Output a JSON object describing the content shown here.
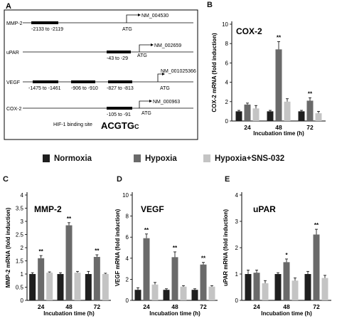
{
  "panel_a": {
    "letter": "A",
    "genes": [
      {
        "name": "MMP-2",
        "accession": "NM_004530",
        "sites": [
          "-2133 to -2119"
        ],
        "atg": "ATG"
      },
      {
        "name": "uPAR",
        "accession": "NM_002659",
        "sites": [
          "-43 to -29"
        ],
        "atg": "ATG"
      },
      {
        "name": "VEGF",
        "accession": "NM_001025366",
        "sites": [
          "-1475 to -1461",
          "-906 to -910",
          "-827 to -813"
        ],
        "atg": "ATG"
      },
      {
        "name": "COX-2",
        "accession": "NM_000963",
        "sites": [
          "-105 to -91"
        ],
        "atg": "ATG"
      }
    ],
    "binding_label": "HIF-1 binding site",
    "binding_seq": "ACGTG",
    "binding_seq_suffix": "C"
  },
  "legend": {
    "normoxia": "Normoxia",
    "hypoxia": "Hypoxia",
    "hypoxia_sns": "Hypoxia+SNS-032"
  },
  "colors": {
    "normoxia": "#1f1f1f",
    "hypoxia": "#6a6a6a",
    "hypoxia_sns": "#c4c4c4",
    "axis": "#000000"
  },
  "chart_data": [
    {
      "panel": "B",
      "type": "bar",
      "title": "COX-2",
      "xlabel": "Incubation time (h)",
      "ylabel": "COX-2 mRNA (fold induction)",
      "categories": [
        "24",
        "48",
        "72"
      ],
      "ylim": [
        0,
        10
      ],
      "yticks": [
        0,
        2,
        4,
        6,
        8,
        10
      ],
      "series": [
        {
          "name": "Normoxia",
          "values": [
            1.0,
            1.0,
            1.0
          ],
          "errors": [
            0.1,
            0.1,
            0.1
          ]
        },
        {
          "name": "Hypoxia",
          "values": [
            1.7,
            7.4,
            2.1
          ],
          "errors": [
            0.15,
            0.8,
            0.3
          ]
        },
        {
          "name": "Hypoxia+SNS-032",
          "values": [
            1.3,
            2.0,
            0.8
          ],
          "errors": [
            0.3,
            0.3,
            0.2
          ]
        }
      ],
      "significance": [
        null,
        "**",
        "**"
      ]
    },
    {
      "panel": "C",
      "type": "bar",
      "title": "MMP-2",
      "xlabel": "Incubation time (h)",
      "ylabel": "MMP-2 mRNA (fold induction)",
      "categories": [
        "24",
        "48",
        "72"
      ],
      "ylim": [
        0,
        4
      ],
      "yticks": [
        0,
        0.5,
        1,
        1.5,
        2,
        2.5,
        3,
        3.5,
        4
      ],
      "series": [
        {
          "name": "Normoxia",
          "values": [
            1.0,
            1.0,
            1.0
          ],
          "errors": [
            0.05,
            0.05,
            0.1
          ]
        },
        {
          "name": "Hypoxia",
          "values": [
            1.6,
            2.85,
            1.65
          ],
          "errors": [
            0.1,
            0.1,
            0.08
          ]
        },
        {
          "name": "Hypoxia+SNS-032",
          "values": [
            1.05,
            1.05,
            1.0
          ],
          "errors": [
            0.03,
            0.05,
            0.03
          ]
        }
      ],
      "significance": [
        "**",
        "**",
        "**"
      ]
    },
    {
      "panel": "D",
      "type": "bar",
      "title": "VEGF",
      "xlabel": "Incubation time (h)",
      "ylabel": "VEGF mRNA (fold induction)",
      "categories": [
        "24",
        "48",
        "72"
      ],
      "ylim": [
        0,
        10
      ],
      "yticks": [
        0,
        2,
        4,
        6,
        8,
        10
      ],
      "series": [
        {
          "name": "Normoxia",
          "values": [
            1.0,
            1.0,
            1.0
          ],
          "errors": [
            0.2,
            0.1,
            0.1
          ]
        },
        {
          "name": "Hypoxia",
          "values": [
            5.9,
            4.1,
            3.4
          ],
          "errors": [
            0.4,
            0.5,
            0.2
          ]
        },
        {
          "name": "Hypoxia+SNS-032",
          "values": [
            1.5,
            1.3,
            1.3
          ],
          "errors": [
            0.2,
            0.1,
            0.1
          ]
        }
      ],
      "significance": [
        "**",
        "**",
        "**"
      ]
    },
    {
      "panel": "E",
      "type": "bar",
      "title": "uPAR",
      "xlabel": "Incubation time (h)",
      "ylabel": "uPAR mRNA (fold induction)",
      "categories": [
        "24",
        "48",
        "72"
      ],
      "ylim": [
        0,
        4
      ],
      "yticks": [
        0,
        1,
        2,
        3,
        4
      ],
      "series": [
        {
          "name": "Normoxia",
          "values": [
            1.0,
            1.0,
            1.0
          ],
          "errors": [
            0.15,
            0.05,
            0.1
          ]
        },
        {
          "name": "Hypoxia",
          "values": [
            1.05,
            1.45,
            2.5
          ],
          "errors": [
            0.1,
            0.12,
            0.2
          ]
        },
        {
          "name": "Hypoxia+SNS-032",
          "values": [
            0.65,
            0.75,
            0.85
          ],
          "errors": [
            0.1,
            0.1,
            0.1
          ]
        }
      ],
      "significance": [
        null,
        "*",
        "**"
      ]
    }
  ]
}
